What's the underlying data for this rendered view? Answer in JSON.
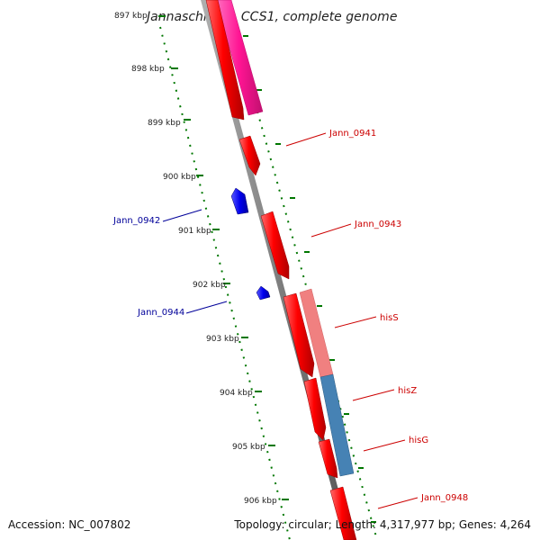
{
  "title": "Jannaschia sp. CCS1, complete genome",
  "footer": {
    "accession": "Accession: NC_007802",
    "summary": "Topology: circular; Length: 4,317,977 bp; Genes: 4,264"
  },
  "ticks": [
    "897 kbp",
    "898 kbp",
    "899 kbp",
    "900 kbp",
    "901 kbp",
    "902 kbp",
    "903 kbp",
    "904 kbp",
    "905 kbp",
    "906 kbp"
  ],
  "genes": [
    {
      "name": "Jann_0941",
      "strand": "forward",
      "color": "#cc0000"
    },
    {
      "name": "Jann_0943",
      "strand": "forward",
      "color": "#cc0000"
    },
    {
      "name": "hisS",
      "strand": "forward",
      "color": "#cc0000"
    },
    {
      "name": "hisZ",
      "strand": "forward",
      "color": "#cc0000"
    },
    {
      "name": "hisG",
      "strand": "forward",
      "color": "#cc0000"
    },
    {
      "name": "Jann_0948",
      "strand": "forward",
      "color": "#cc0000"
    },
    {
      "name": "Jann_0942",
      "strand": "reverse",
      "color": "#000099"
    },
    {
      "name": "Jann_0944",
      "strand": "reverse",
      "color": "#000099"
    }
  ],
  "colors": {
    "forward_cds": "#ff0000",
    "reverse_cds": "#0000ee",
    "backbone": "#808080",
    "ticks": "#007700",
    "rna_feature": "#ff1493",
    "hisS_feature": "#f08080",
    "hisZ_feature": "#4682b4"
  }
}
